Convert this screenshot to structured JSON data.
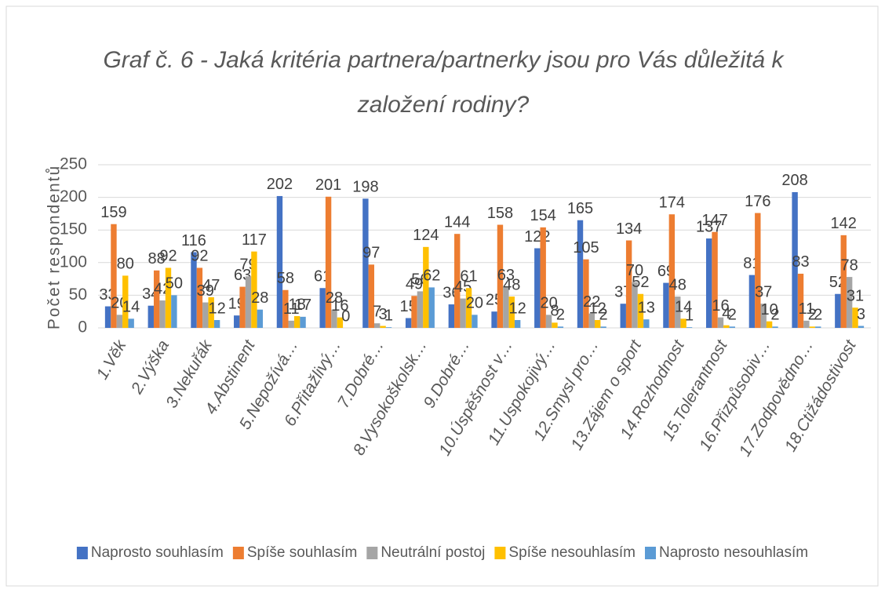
{
  "chart_data": {
    "type": "bar",
    "title": [
      "Graf č. 6 - Jaká kritéria partnera/partnerky jsou pro Vás důležitá k",
      "založení rodiny?"
    ],
    "y_label": "Počet respondentů",
    "categories": [
      "1.Věk",
      "2.Výška",
      "3.Nekuřák",
      "4.Abstinent",
      "5.Nepožívá…",
      "6.Přitažlivý…",
      "7.Dobré…",
      "8.Vysokoškolsk…",
      "9.Dobré…",
      "10.Úspěšnost v…",
      "11.Uspokojivý…",
      "12.Smysl pro…",
      "13.Zájem o sport",
      "14.Rozhodnost",
      "15.Tolerantnost",
      "16.Přizpůsobiv…",
      "17.Zodpovědno…",
      "18.Ctižádostivost"
    ],
    "series": [
      {
        "name": "Naprosto souhlasím",
        "color": "#4472c4",
        "values": [
          33,
          34,
          116,
          19,
          202,
          61,
          198,
          15,
          36,
          25,
          122,
          165,
          37,
          69,
          137,
          81,
          208,
          52
        ]
      },
      {
        "name": "Spíše souhlasím",
        "color": "#ed7d31",
        "values": [
          159,
          88,
          92,
          63,
          58,
          201,
          97,
          49,
          144,
          158,
          154,
          105,
          134,
          174,
          147,
          176,
          83,
          142
        ]
      },
      {
        "name": "Neutrální postoj",
        "color": "#a5a5a5",
        "values": [
          20,
          42,
          39,
          79,
          11,
          28,
          7,
          56,
          45,
          63,
          20,
          22,
          70,
          48,
          16,
          37,
          11,
          78
        ]
      },
      {
        "name": "Spíše nesouhlasím",
        "color": "#ffc000",
        "values": [
          80,
          92,
          47,
          117,
          18,
          16,
          3,
          124,
          61,
          48,
          8,
          12,
          52,
          14,
          4,
          10,
          2,
          31
        ]
      },
      {
        "name": "Naprosto nesouhlasím",
        "color": "#5b9bd5",
        "values": [
          14,
          50,
          12,
          28,
          17,
          0,
          1,
          62,
          20,
          12,
          2,
          2,
          13,
          1,
          2,
          2,
          2,
          3
        ]
      }
    ],
    "ylim": [
      0,
      250
    ],
    "yticks": [
      0,
      50,
      100,
      150,
      200,
      250
    ],
    "grid": true,
    "legend": "bottom"
  }
}
